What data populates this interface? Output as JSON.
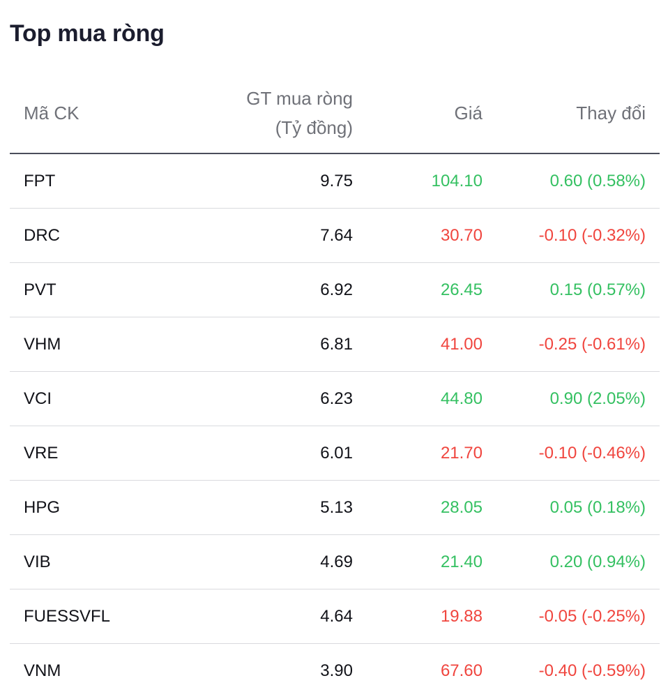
{
  "title": "Top mua ròng",
  "headers": {
    "symbol": "Mã CK",
    "value_line1": "GT mua ròng",
    "value_line2": "(Tỷ đồng)",
    "price": "Giá",
    "change": "Thay đổi"
  },
  "colors": {
    "up": "#34c061",
    "down": "#f0453e",
    "text": "#111218",
    "header_text": "#6f7178"
  },
  "rows": [
    {
      "symbol": "FPT",
      "value": "9.75",
      "price": "104.10",
      "change": "0.60 (0.58%)",
      "trend": "up"
    },
    {
      "symbol": "DRC",
      "value": "7.64",
      "price": "30.70",
      "change": "-0.10 (-0.32%)",
      "trend": "down"
    },
    {
      "symbol": "PVT",
      "value": "6.92",
      "price": "26.45",
      "change": "0.15 (0.57%)",
      "trend": "up"
    },
    {
      "symbol": "VHM",
      "value": "6.81",
      "price": "41.00",
      "change": "-0.25 (-0.61%)",
      "trend": "down"
    },
    {
      "symbol": "VCI",
      "value": "6.23",
      "price": "44.80",
      "change": "0.90 (2.05%)",
      "trend": "up"
    },
    {
      "symbol": "VRE",
      "value": "6.01",
      "price": "21.70",
      "change": "-0.10 (-0.46%)",
      "trend": "down"
    },
    {
      "symbol": "HPG",
      "value": "5.13",
      "price": "28.05",
      "change": "0.05 (0.18%)",
      "trend": "up"
    },
    {
      "symbol": "VIB",
      "value": "4.69",
      "price": "21.40",
      "change": "0.20 (0.94%)",
      "trend": "up"
    },
    {
      "symbol": "FUESSVFL",
      "value": "4.64",
      "price": "19.88",
      "change": "-0.05 (-0.25%)",
      "trend": "down"
    },
    {
      "symbol": "VNM",
      "value": "3.90",
      "price": "67.60",
      "change": "-0.40 (-0.59%)",
      "trend": "down"
    }
  ]
}
